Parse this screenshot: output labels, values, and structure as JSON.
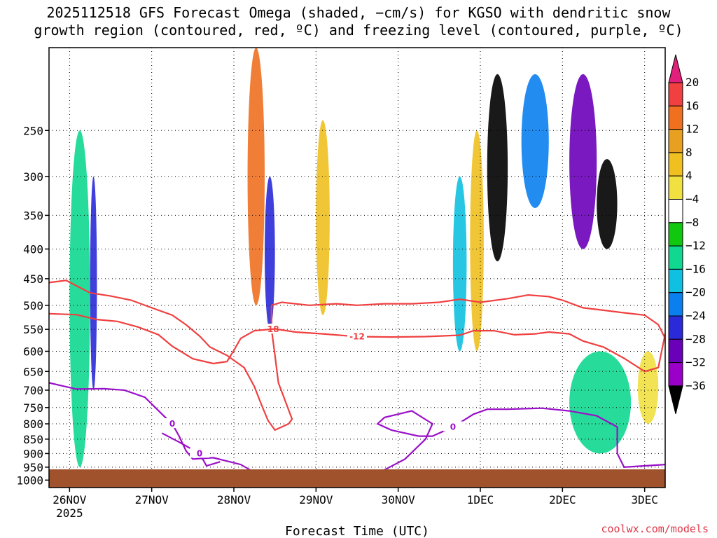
{
  "header": {
    "title_line1": "2025112518 GFS Forecast Omega (shaded, −cm/s) for KGSO with dendritic snow",
    "title_line2": "growth region (contoured, red, ºC) and freezing level (contoured, purple, ºC)"
  },
  "footer": {
    "xlabel": "Forecast Time (UTC)",
    "credit": "coolwx.com/models"
  },
  "chart_data": {
    "type": "heatmap",
    "title": "2025112518 GFS Forecast Omega (shaded, −cm/s) for KGSO with dendritic snow growth region (contoured, red, ºC) and freezing level (contoured, purple, ºC)",
    "xlabel": "Forecast Time (UTC)",
    "ylabel": "",
    "x_ticks": [
      {
        "label": "26NOV",
        "sublabel": "2025",
        "hour": 6
      },
      {
        "label": "27NOV",
        "hour": 30
      },
      {
        "label": "28NOV",
        "hour": 54
      },
      {
        "label": "29NOV",
        "hour": 78
      },
      {
        "label": "30NOV",
        "hour": 102
      },
      {
        "label": "1DEC",
        "hour": 126
      },
      {
        "label": "2DEC",
        "hour": 150
      },
      {
        "label": "3DEC",
        "hour": 174
      }
    ],
    "xlim_hours": [
      0,
      180
    ],
    "y_ticks": [
      "250",
      "300",
      "350",
      "400",
      "450",
      "500",
      "550",
      "600",
      "650",
      "700",
      "750",
      "800",
      "850",
      "900",
      "950",
      "1000"
    ],
    "y_tick_values": [
      250,
      300,
      350,
      400,
      450,
      500,
      550,
      600,
      650,
      700,
      750,
      800,
      850,
      900,
      950,
      1000
    ],
    "ylim_hpa": [
      180,
      1030
    ],
    "y_scale": "log-pressure",
    "grid": true,
    "colorbar": {
      "labels": [
        "20",
        "16",
        "12",
        "8",
        "4",
        "−4",
        "−8",
        "−12",
        "−16",
        "−20",
        "−24",
        "−28",
        "−32",
        "−36"
      ],
      "colors": [
        "#ffffff",
        "#000000",
        "#a8a8a8",
        "#9a00c8",
        "#6a00b8",
        "#2a2ad8",
        "#0a80f0",
        "#10c0e0",
        "#10d890",
        "#10c810",
        "#ffffff",
        "#f0e040",
        "#f0c020",
        "#e8a020",
        "#f07020",
        "#f04040",
        "#e0207a"
      ]
    },
    "dgz_contours": [
      {
        "name": "-18",
        "points": [
          [
            0,
            457
          ],
          [
            5,
            453
          ],
          [
            12,
            476
          ],
          [
            18,
            482
          ],
          [
            24,
            490
          ],
          [
            30,
            505
          ],
          [
            36,
            520
          ],
          [
            40,
            540
          ],
          [
            44,
            565
          ],
          [
            47,
            590
          ],
          [
            52,
            610
          ],
          [
            57,
            640
          ],
          [
            60,
            690
          ],
          [
            62,
            740
          ],
          [
            64,
            790
          ],
          [
            66,
            820
          ],
          [
            70,
            800
          ],
          [
            71,
            785
          ],
          [
            69,
            730
          ],
          [
            67,
            680
          ],
          [
            66,
            610
          ],
          [
            65,
            550
          ],
          [
            65,
            500
          ],
          [
            68,
            494
          ],
          [
            76,
            500
          ],
          [
            84,
            497
          ],
          [
            90,
            500
          ],
          [
            98,
            497
          ],
          [
            106,
            497
          ],
          [
            114,
            494
          ],
          [
            120,
            488
          ],
          [
            126,
            494
          ],
          [
            134,
            487
          ],
          [
            140,
            480
          ],
          [
            146,
            483
          ],
          [
            150,
            490
          ],
          [
            156,
            505
          ],
          [
            162,
            510
          ],
          [
            168,
            515
          ],
          [
            174,
            520
          ],
          [
            178,
            540
          ],
          [
            180,
            570
          ]
        ]
      },
      {
        "name": "-12",
        "points": [
          [
            0,
            517
          ],
          [
            8,
            519
          ],
          [
            14,
            529
          ],
          [
            20,
            533
          ],
          [
            26,
            545
          ],
          [
            32,
            562
          ],
          [
            36,
            588
          ],
          [
            42,
            618
          ],
          [
            48,
            630
          ],
          [
            52,
            625
          ],
          [
            54,
            598
          ],
          [
            56,
            570
          ],
          [
            60,
            553
          ],
          [
            66,
            549
          ],
          [
            72,
            556
          ],
          [
            80,
            560
          ],
          [
            90,
            566
          ],
          [
            100,
            567
          ],
          [
            110,
            566
          ],
          [
            120,
            563
          ],
          [
            124,
            553
          ],
          [
            130,
            553
          ],
          [
            136,
            562
          ],
          [
            142,
            560
          ],
          [
            146,
            556
          ],
          [
            152,
            560
          ],
          [
            156,
            576
          ],
          [
            162,
            590
          ],
          [
            168,
            617
          ],
          [
            174,
            650
          ],
          [
            178,
            640
          ],
          [
            180,
            560
          ]
        ]
      }
    ],
    "freezing_contours": [
      {
        "name": "0",
        "points": [
          [
            0,
            680
          ],
          [
            8,
            697
          ],
          [
            16,
            696
          ],
          [
            22,
            700
          ],
          [
            28,
            720
          ],
          [
            34,
            780
          ],
          [
            36,
            800
          ],
          [
            38,
            840
          ],
          [
            40,
            890
          ],
          [
            42,
            920
          ],
          [
            48,
            915
          ],
          [
            56,
            940
          ],
          [
            62,
            985
          ]
        ]
      },
      {
        "name": "0",
        "points": [
          [
            33,
            830
          ],
          [
            38,
            860
          ],
          [
            44,
            900
          ],
          [
            46,
            945
          ],
          [
            50,
            930
          ]
        ]
      },
      {
        "name": "0",
        "points": [
          [
            92,
            1000
          ],
          [
            98,
            960
          ],
          [
            104,
            920
          ],
          [
            110,
            850
          ],
          [
            112,
            800
          ],
          [
            106,
            760
          ],
          [
            98,
            780
          ],
          [
            96,
            800
          ],
          [
            100,
            820
          ],
          [
            108,
            840
          ],
          [
            112,
            840
          ],
          [
            118,
            810
          ],
          [
            124,
            770
          ],
          [
            128,
            755
          ],
          [
            134,
            755
          ],
          [
            144,
            752
          ],
          [
            152,
            760
          ],
          [
            160,
            775
          ],
          [
            166,
            810
          ],
          [
            166,
            900
          ],
          [
            168,
            950
          ],
          [
            174,
            945
          ],
          [
            180,
            940
          ]
        ]
      }
    ],
    "omega_features": [
      {
        "hours": [
          6,
          12
        ],
        "p": [
          250,
          950
        ],
        "value": -10
      },
      {
        "hours": [
          12,
          14
        ],
        "p": [
          300,
          700
        ],
        "value": -20
      },
      {
        "hours": [
          58,
          63
        ],
        "p": [
          180,
          500
        ],
        "value": 16
      },
      {
        "hours": [
          63,
          66
        ],
        "p": [
          300,
          550
        ],
        "value": -20
      },
      {
        "hours": [
          78,
          82
        ],
        "p": [
          240,
          520
        ],
        "value": 10
      },
      {
        "hours": [
          118,
          122
        ],
        "p": [
          300,
          600
        ],
        "value": -12
      },
      {
        "hours": [
          123,
          127
        ],
        "p": [
          250,
          600
        ],
        "value": 10
      },
      {
        "hours": [
          128,
          134
        ],
        "p": [
          200,
          420
        ],
        "value": -36
      },
      {
        "hours": [
          138,
          146
        ],
        "p": [
          200,
          340
        ],
        "value": -16
      },
      {
        "hours": [
          152,
          160
        ],
        "p": [
          200,
          400
        ],
        "value": -24
      },
      {
        "hours": [
          160,
          166
        ],
        "p": [
          280,
          400
        ],
        "value": -36
      },
      {
        "hours": [
          152,
          170
        ],
        "p": [
          600,
          900
        ],
        "value": -8
      },
      {
        "hours": [
          172,
          178
        ],
        "p": [
          600,
          800
        ],
        "value": 6
      }
    ]
  }
}
